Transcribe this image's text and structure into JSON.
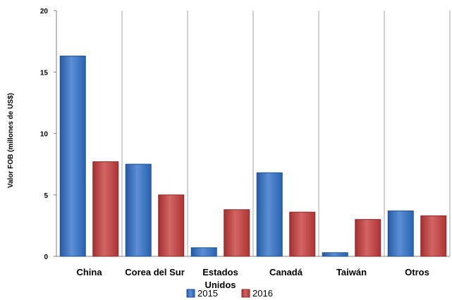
{
  "chart_data": {
    "type": "bar",
    "title": "",
    "xlabel": "",
    "ylabel": "Valor FOB (millones de US$)",
    "ylim": [
      0,
      20
    ],
    "yticks": [
      "0",
      "5",
      "10",
      "15",
      "20"
    ],
    "categories": [
      "China",
      "Corea del Sur",
      "Estados Unidos",
      "Canadá",
      "Taiwán",
      "Otros"
    ],
    "category_label_lines": [
      [
        "China"
      ],
      [
        "Corea del Sur"
      ],
      [
        "Estados",
        "Unidos"
      ],
      [
        "Canadá"
      ],
      [
        "Taiwán"
      ],
      [
        "Otros"
      ]
    ],
    "series": [
      {
        "name": "2015",
        "color": "#2E6FC9",
        "values": [
          16.3,
          7.5,
          0.7,
          6.8,
          0.3,
          3.7
        ]
      },
      {
        "name": "2016",
        "color": "#C73A3A",
        "values": [
          7.7,
          5.0,
          3.8,
          3.6,
          3.0,
          3.3
        ]
      }
    ],
    "grid": "vertical category separators",
    "legend_position": "bottom"
  }
}
